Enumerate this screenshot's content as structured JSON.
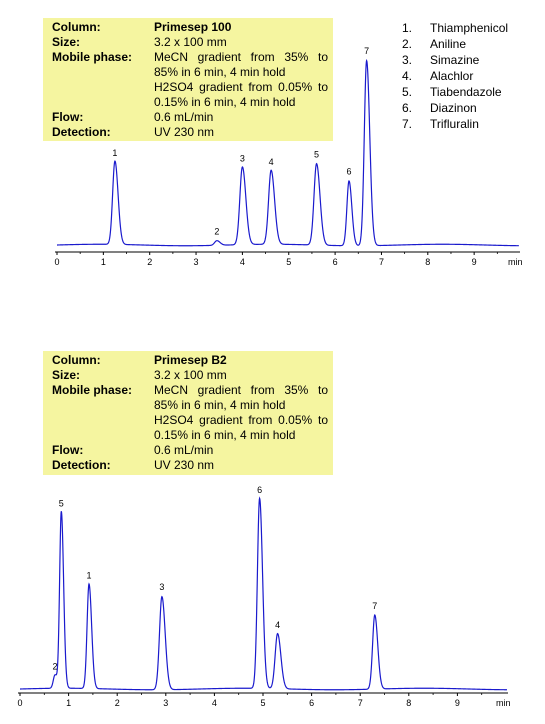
{
  "chart_data": [
    {
      "type": "line",
      "info": {
        "column_label": "Column:",
        "column_value": "Primesep 100",
        "size_label": "Size:",
        "size_value": "3.2 x 100 mm",
        "mobile_label": "Mobile phase:",
        "mobile_value_1": "MeCN gradient from 35% to 85% in 6 min, 4 min hold",
        "mobile_value_2": "H2SO4 gradient from 0.05% to 0.15% in 6 min, 4 min hold",
        "flow_label": "Flow:",
        "flow_value": "0.6 mL/min",
        "detection_label": "Detection:",
        "detection_value": "UV 230 nm"
      },
      "x_unit": "min",
      "xlim": [
        0,
        10
      ],
      "x_ticks": [
        "0",
        "1",
        "2",
        "3",
        "4",
        "5",
        "6",
        "7",
        "8",
        "9"
      ],
      "peaks": [
        {
          "label": "1",
          "rt": 1.25,
          "height": 0.45,
          "width": 0.05
        },
        {
          "label": "2",
          "rt": 3.45,
          "height": 0.025,
          "width": 0.05
        },
        {
          "label": "3",
          "rt": 4.0,
          "height": 0.42,
          "width": 0.055
        },
        {
          "label": "4",
          "rt": 4.62,
          "height": 0.4,
          "width": 0.055
        },
        {
          "label": "5",
          "rt": 5.6,
          "height": 0.44,
          "width": 0.055
        },
        {
          "label": "6",
          "rt": 6.3,
          "height": 0.35,
          "width": 0.045
        },
        {
          "label": "7",
          "rt": 6.68,
          "height": 1.0,
          "width": 0.05
        }
      ],
      "color": "#1a1acd"
    },
    {
      "type": "line",
      "info": {
        "column_label": "Column:",
        "column_value": "Primesep B2",
        "size_label": "Size:",
        "size_value": "3.2 x 100 mm",
        "mobile_label": "Mobile phase:",
        "mobile_value_1": "MeCN gradient from 35% to 85% in 6 min, 4 min hold",
        "mobile_value_2": "H2SO4 gradient from 0.05% to 0.15% in 6 min, 4 min hold",
        "flow_label": "Flow:",
        "flow_value": "0.6 mL/min",
        "detection_label": "Detection:",
        "detection_value": "UV 230 nm"
      },
      "x_unit": "min",
      "xlim": [
        0,
        10
      ],
      "x_ticks": [
        "0",
        "1",
        "2",
        "3",
        "4",
        "5",
        "6",
        "7",
        "8",
        "9"
      ],
      "peaks": [
        {
          "label": "2",
          "rt": 0.72,
          "height": 0.07,
          "width": 0.035
        },
        {
          "label": "5",
          "rt": 0.85,
          "height": 0.93,
          "width": 0.035
        },
        {
          "label": "1",
          "rt": 1.42,
          "height": 0.55,
          "width": 0.04
        },
        {
          "label": "3",
          "rt": 2.92,
          "height": 0.49,
          "width": 0.05
        },
        {
          "label": "6",
          "rt": 4.93,
          "height": 1.0,
          "width": 0.045
        },
        {
          "label": "4",
          "rt": 5.3,
          "height": 0.29,
          "width": 0.05
        },
        {
          "label": "7",
          "rt": 7.3,
          "height": 0.39,
          "width": 0.045
        }
      ],
      "color": "#1a1acd"
    }
  ],
  "legend": [
    {
      "num": "1.",
      "name": "Thiamphenicol"
    },
    {
      "num": "2.",
      "name": "Aniline"
    },
    {
      "num": "3.",
      "name": "Simazine"
    },
    {
      "num": "4.",
      "name": "Alachlor"
    },
    {
      "num": "5.",
      "name": "Tiabendazole"
    },
    {
      "num": "6.",
      "name": "Diazinon"
    },
    {
      "num": "7.",
      "name": "Trifluralin"
    }
  ]
}
